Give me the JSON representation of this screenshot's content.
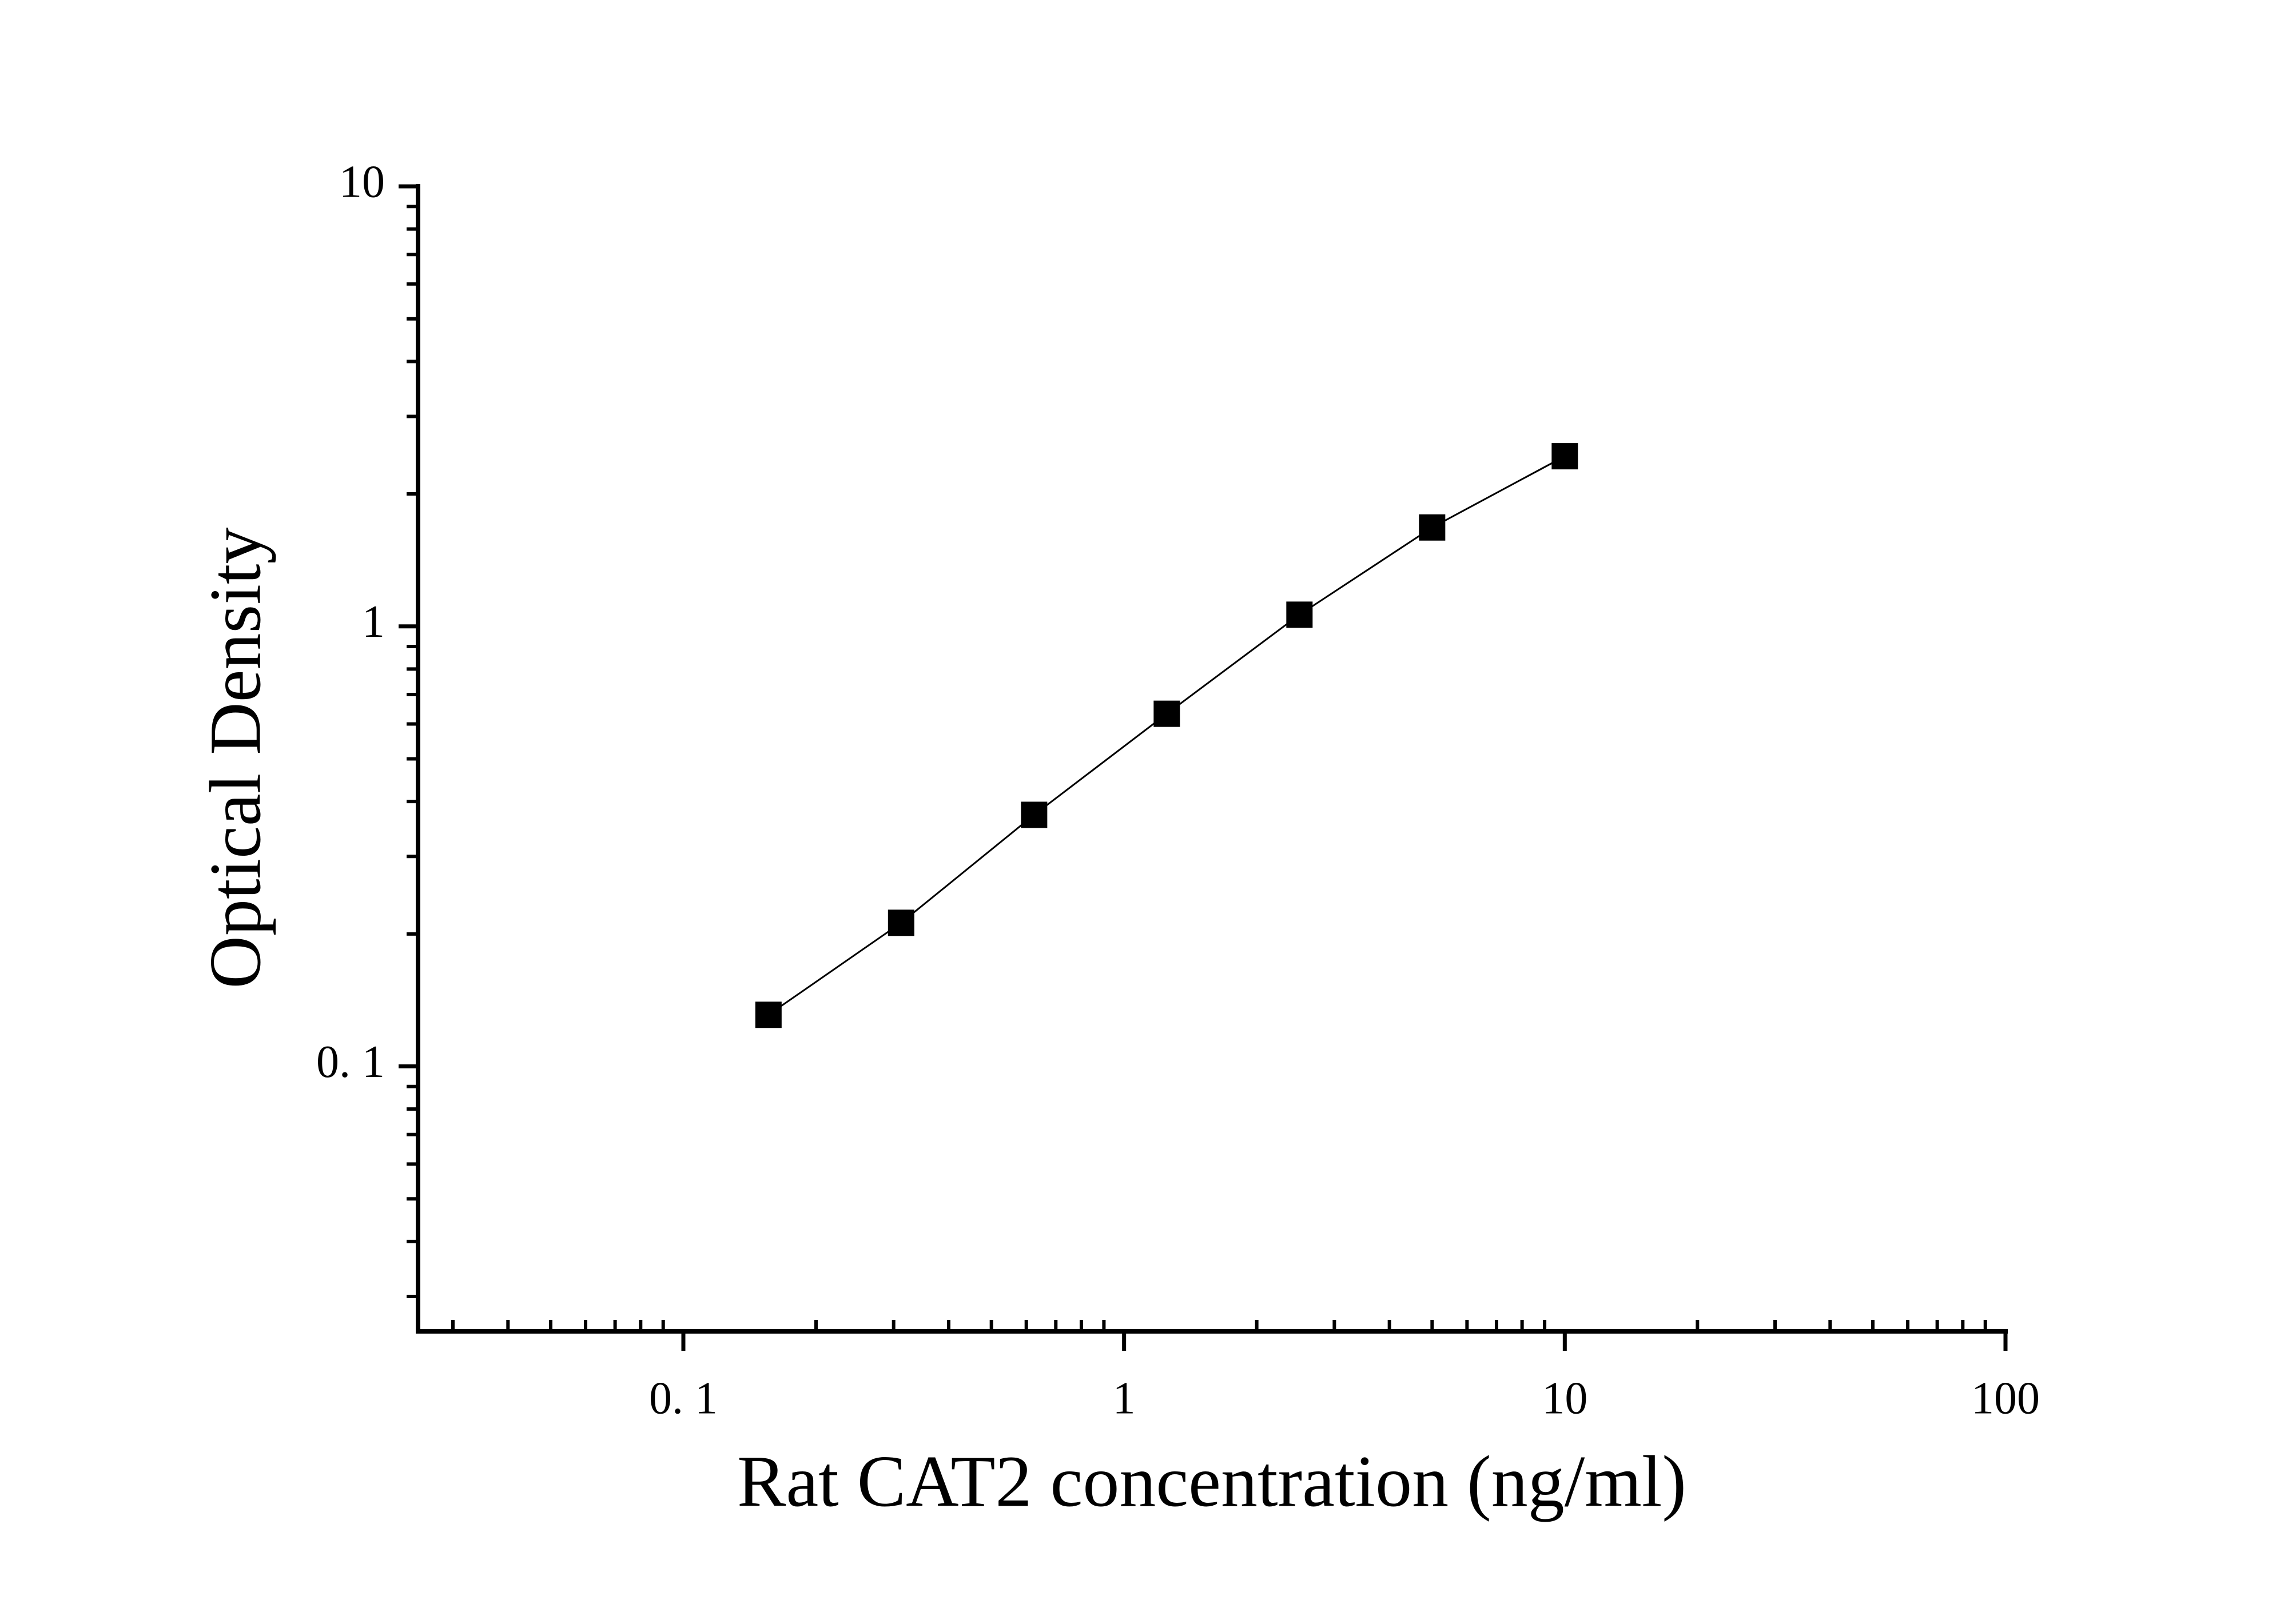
{
  "chart_data": {
    "type": "line",
    "x_label": "Rat CAT2 concentration (ng/ml)",
    "y_label": "Optical Density",
    "x": [
      0.156,
      0.312,
      0.625,
      1.25,
      2.5,
      5,
      10
    ],
    "series": [
      {
        "color": "#000000",
        "values": [
          0.131,
          0.212,
          0.373,
          0.633,
          1.063,
          1.678,
          2.436
        ]
      }
    ],
    "xlog": true,
    "ylog": true,
    "xlim": [
      0.025,
      100
    ],
    "ylim": [
      0.025,
      10
    ],
    "xticks": [
      {
        "value": 0.1,
        "label": "0. 1"
      },
      1,
      10,
      100
    ],
    "yticks": [
      {
        "value": 0.1,
        "label": "0. 1"
      },
      1,
      10
    ],
    "xminorticks": [
      0.03,
      0.04,
      0.05,
      0.06,
      0.07,
      0.08,
      0.09,
      0.2,
      0.3,
      0.4,
      0.5,
      0.6,
      0.7,
      0.8,
      0.9,
      2,
      3,
      4,
      5,
      6,
      7,
      8,
      9,
      20,
      30,
      40,
      50,
      60,
      70,
      80,
      90
    ],
    "yminorticks": [
      0.03,
      0.04,
      0.05,
      0.06,
      0.07,
      0.08,
      0.09,
      0.2,
      0.3,
      0.4,
      0.5,
      0.6,
      0.7,
      0.8,
      0.9,
      2,
      3,
      4,
      5,
      6,
      7,
      8,
      9
    ],
    "grid": false
  }
}
